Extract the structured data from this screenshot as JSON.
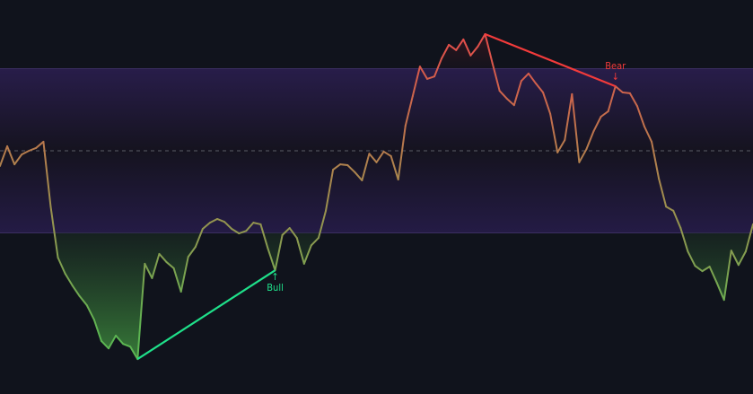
{
  "chart_data": {
    "type": "line",
    "title": "",
    "xlabel": "",
    "ylabel": "",
    "ylim": [
      -9.2,
      86.7
    ],
    "grid": false,
    "levels": {
      "upper": 70,
      "middle": 50,
      "lower": 30
    },
    "values": [
      46.3,
      51.1,
      46.7,
      49.1,
      50.0,
      50.7,
      52.2,
      36.4,
      24.0,
      20.1,
      17.2,
      14.6,
      12.4,
      8.9,
      3.7,
      1.9,
      5.0,
      3.0,
      2.3,
      -0.7,
      22.5,
      19.0,
      24.9,
      22.9,
      21.4,
      15.7,
      24.2,
      26.6,
      31.0,
      32.5,
      33.4,
      32.7,
      31.0,
      29.9,
      30.5,
      32.5,
      32.1,
      26.2,
      20.9,
      29.5,
      31.2,
      28.8,
      22.5,
      27.0,
      28.8,
      35.4,
      45.4,
      46.7,
      46.5,
      44.8,
      42.8,
      49.3,
      47.2,
      49.8,
      48.7,
      43.0,
      56.1,
      63.3,
      70.5,
      67.5,
      68.1,
      72.5,
      75.8,
      74.5,
      77.1,
      73.2,
      75.4,
      78.4,
      71.4,
      64.6,
      62.7,
      61.1,
      67.0,
      68.8,
      66.4,
      64.2,
      59.0,
      49.6,
      52.6,
      63.8,
      47.2,
      50.4,
      54.8,
      58.3,
      59.6,
      65.7,
      64.2,
      64.0,
      60.9,
      55.9,
      52.2,
      43.2,
      36.4,
      35.4,
      31.2,
      25.5,
      22.0,
      20.7,
      21.8,
      17.9,
      13.7,
      25.7,
      22.2,
      25.5,
      32.1
    ],
    "divergences": [
      {
        "type": "bullish",
        "label": "Bull",
        "arrow": "↑",
        "from_index": 19,
        "to_index": 38,
        "color": "#1fe08a"
      },
      {
        "type": "bearish",
        "label": "Bear",
        "arrow": "↓",
        "from_index": 67,
        "to_index": 85,
        "color": "#f23b3b"
      }
    ],
    "colors": {
      "background": "#10131c",
      "band_fill": "#221a3e",
      "band_border": "#3b2e60",
      "midline": "#5a5d66",
      "line_high": "#e8494a",
      "line_mid": "#a8884e",
      "line_low": "#5cb552"
    }
  }
}
